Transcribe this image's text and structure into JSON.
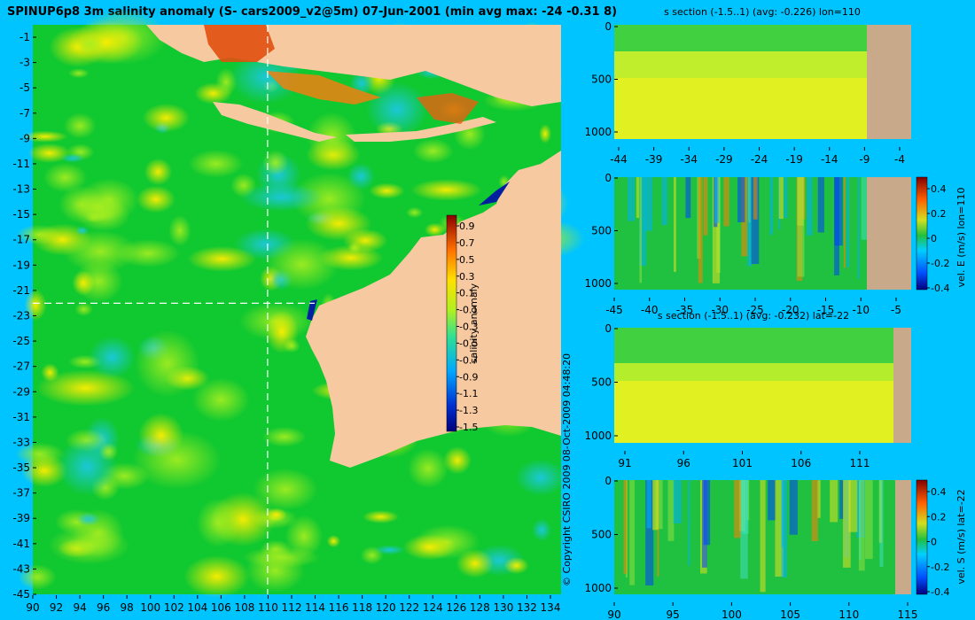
{
  "title": "SPINUP6p8 3m salinity anomaly (S- cars2009_v2@5m) 07-Jun-2001 (min avg max: -24 -0.31 8)",
  "copyright": "© Copyright CSIRO 2009   08-Oct-2009 04:48:20",
  "colors": {
    "background": "#00c4ff",
    "land": "#f7c9a0",
    "section_land": "#c8a98a",
    "guide_line": "#ffffff"
  },
  "chart_data": [
    {
      "type": "heatmap",
      "name": "map",
      "title": "SPINUP6p8 3m salinity anomaly (S- cars2009_v2@5m) 07-Jun-2001 (min avg max: -24 -0.31 8)",
      "xlim": [
        90,
        135
      ],
      "ylim": [
        -45,
        0
      ],
      "x_ticks": [
        "90",
        "92",
        "94",
        "96",
        "98",
        "100",
        "102",
        "104",
        "106",
        "108",
        "110",
        "112",
        "114",
        "116",
        "118",
        "120",
        "122",
        "124",
        "126",
        "128",
        "130",
        "132",
        "134"
      ],
      "y_ticks": [
        "-1",
        "-3",
        "-5",
        "-7",
        "-9",
        "-11",
        "-13",
        "-15",
        "-17",
        "-19",
        "-21",
        "-23",
        "-25",
        "-27",
        "-29",
        "-31",
        "-33",
        "-35",
        "-37",
        "-39",
        "-41",
        "-43",
        "-45"
      ],
      "guide_lon": 110,
      "guide_lat": -22,
      "colorbar": {
        "label": "salinity anomaly",
        "range": [
          -1.5,
          1.0
        ],
        "ticks": [
          "0.9",
          "0.7",
          "0.5",
          "0.3",
          "0.1",
          "-0.1",
          "-0.3",
          "-0.5",
          "-0.7",
          "-0.9",
          "-1.1",
          "-1.3",
          "-1.5"
        ]
      }
    },
    {
      "type": "heatmap",
      "name": "s-section-lon110",
      "title": "s section (-1.5..1) (avg: -0.226) lon=110",
      "x_ticks": [
        "-44",
        "-39",
        "-34",
        "-29",
        "-24",
        "-19",
        "-14",
        "-9",
        "-4"
      ],
      "y_ticks": [
        "0",
        "500",
        "1000"
      ],
      "xlim": [
        -45,
        -1
      ],
      "ylim": [
        1050,
        0
      ]
    },
    {
      "type": "heatmap",
      "name": "vel-e-section-lon110",
      "title": "",
      "x_ticks": [
        "-45",
        "-40",
        "-35",
        "-30",
        "-25",
        "-20",
        "-15",
        "-10",
        "-5"
      ],
      "y_ticks": [
        "0",
        "500",
        "1000"
      ],
      "xlim": [
        -45,
        -1
      ],
      "ylim": [
        1050,
        0
      ],
      "colorbar": {
        "label": "vel. E (m/s) lon=110",
        "range": [
          -0.4,
          0.5
        ],
        "ticks": [
          "0.4",
          "0.2",
          "0",
          "-0.2",
          "-0.4"
        ]
      }
    },
    {
      "type": "heatmap",
      "name": "s-section-lat22",
      "title": "s section (-1.5..1) (avg: -0.232) lat=-22",
      "x_ticks": [
        "91",
        "96",
        "101",
        "106",
        "111"
      ],
      "y_ticks": [
        "0",
        "500",
        "1000"
      ],
      "xlim": [
        89.5,
        115
      ],
      "ylim": [
        1050,
        0
      ]
    },
    {
      "type": "heatmap",
      "name": "vel-s-section-lat22",
      "title": "",
      "x_ticks": [
        "90",
        "95",
        "100",
        "105",
        "110",
        "115"
      ],
      "y_ticks": [
        "0",
        "500",
        "1000"
      ],
      "xlim": [
        90,
        115
      ],
      "ylim": [
        1050,
        0
      ],
      "colorbar": {
        "label": "vel. S (m/s) lat=-22",
        "range": [
          -0.4,
          0.5
        ],
        "ticks": [
          "0.4",
          "0.2",
          "0",
          "-0.2",
          "-0.4"
        ]
      }
    }
  ]
}
